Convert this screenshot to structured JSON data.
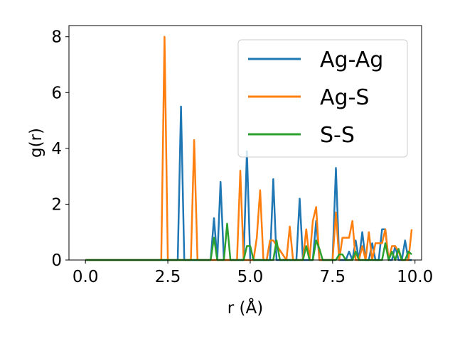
{
  "chart_data": {
    "type": "line",
    "title": "",
    "xlabel": "r (Å)",
    "ylabel": "g(r)",
    "xlim": [
      -0.5,
      10.2
    ],
    "ylim": [
      0,
      8.4
    ],
    "xticks": [
      0.0,
      2.5,
      5.0,
      7.5,
      10.0
    ],
    "xtick_labels": [
      "0.0",
      "2.5",
      "5.0",
      "7.5",
      "10.0"
    ],
    "yticks": [
      0,
      2,
      4,
      6,
      8
    ],
    "ytick_labels": [
      "0",
      "2",
      "4",
      "6",
      "8"
    ],
    "grid": false,
    "legend_position": "top-right",
    "series": [
      {
        "name": "Ag-Ag",
        "color": "#1f77b4",
        "x": [
          0.0,
          2.7,
          2.8,
          2.9,
          3.0,
          3.1,
          3.8,
          3.9,
          4.0,
          4.1,
          4.2,
          4.8,
          4.9,
          5.0,
          5.1,
          5.6,
          5.7,
          5.8,
          6.4,
          6.5,
          6.6,
          6.9,
          7.0,
          7.1,
          7.5,
          7.6,
          7.7,
          7.9,
          8.0,
          8.1,
          8.2,
          8.3,
          8.4,
          8.5,
          8.6,
          8.7,
          8.8,
          8.9,
          9.0,
          9.1,
          9.2,
          9.3,
          9.4,
          9.5,
          9.6,
          9.7,
          9.8,
          9.9
        ],
        "values": [
          0.0,
          0.0,
          0.0,
          5.5,
          0.0,
          0.0,
          0.0,
          1.5,
          0.0,
          2.8,
          0.0,
          0.0,
          3.9,
          0.0,
          0.0,
          0.0,
          2.9,
          0.0,
          0.0,
          2.2,
          0.0,
          0.0,
          1.4,
          0.0,
          0.0,
          3.3,
          0.0,
          0.0,
          0.3,
          0.0,
          0.7,
          0.0,
          1.0,
          0.0,
          0.0,
          0.6,
          0.0,
          0.0,
          1.1,
          1.1,
          0.0,
          0.0,
          0.5,
          0.0,
          0.0,
          0.7,
          0.0,
          0.0
        ]
      },
      {
        "name": "Ag-S",
        "color": "#ff7f0e",
        "x": [
          0.0,
          2.2,
          2.3,
          2.4,
          2.5,
          2.6,
          3.1,
          3.2,
          3.3,
          3.4,
          4.5,
          4.6,
          4.7,
          4.8,
          5.1,
          5.2,
          5.3,
          5.4,
          5.5,
          5.6,
          5.7,
          6.1,
          6.2,
          6.3,
          6.5,
          6.6,
          6.7,
          6.8,
          6.9,
          7.0,
          7.1,
          7.5,
          7.6,
          7.7,
          7.8,
          7.9,
          8.0,
          8.1,
          8.2,
          8.3,
          8.4,
          8.5,
          8.6,
          8.7,
          8.8,
          8.9,
          9.0,
          9.1,
          9.2,
          9.3,
          9.4,
          9.5,
          9.6,
          9.7,
          9.8,
          9.9
        ],
        "values": [
          0.0,
          0.0,
          0.0,
          8.0,
          0.0,
          0.0,
          0.0,
          0.0,
          4.3,
          0.0,
          0.0,
          0.0,
          3.2,
          0.0,
          0.0,
          0.8,
          2.5,
          0.0,
          0.0,
          0.7,
          0.7,
          0.0,
          1.2,
          0.0,
          0.0,
          0.0,
          1.1,
          0.0,
          1.4,
          1.9,
          0.0,
          0.0,
          1.7,
          0.0,
          0.8,
          0.8,
          0.8,
          1.4,
          0.0,
          0.0,
          0.5,
          0.0,
          1.0,
          0.0,
          0.6,
          0.6,
          0.6,
          1.1,
          0.0,
          0.5,
          0.5,
          0.3,
          0.0,
          0.0,
          0.0,
          1.1
        ]
      },
      {
        "name": "S-S",
        "color": "#2ca02c",
        "x": [
          0.0,
          3.8,
          3.9,
          4.0,
          4.1,
          4.2,
          4.3,
          4.4,
          4.8,
          4.9,
          5.0,
          5.1,
          5.7,
          5.8,
          5.9,
          6.6,
          6.7,
          6.8,
          6.9,
          7.0,
          7.1,
          7.2,
          7.6,
          7.7,
          7.8,
          7.9,
          8.0,
          8.1,
          8.2,
          8.3,
          8.4,
          8.5,
          8.6,
          8.7,
          8.8,
          8.9,
          9.0,
          9.1,
          9.2,
          9.3,
          9.4,
          9.5,
          9.6,
          9.7,
          9.8,
          9.9
        ],
        "values": [
          0.0,
          0.0,
          0.8,
          0.0,
          0.0,
          0.0,
          1.3,
          0.0,
          0.0,
          0.5,
          0.5,
          0.0,
          0.0,
          0.7,
          0.0,
          0.0,
          0.5,
          0.0,
          0.0,
          0.7,
          0.4,
          0.0,
          0.0,
          0.2,
          0.2,
          0.0,
          0.0,
          0.0,
          0.3,
          0.0,
          0.0,
          0.0,
          0.0,
          0.0,
          0.0,
          0.0,
          0.0,
          0.6,
          0.0,
          0.3,
          0.0,
          0.4,
          0.0,
          0.0,
          0.3,
          0.2
        ]
      }
    ]
  }
}
